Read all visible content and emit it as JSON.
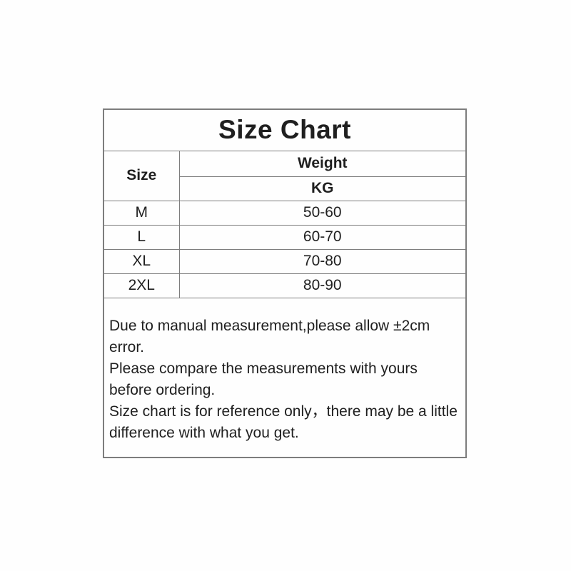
{
  "page": {
    "background_color": "#ffffff",
    "text_color": "#1f1f1f",
    "border_color": "#7d7d7d"
  },
  "table": {
    "title": "Size Chart",
    "headers": {
      "size": "Size",
      "weight": "Weight",
      "unit": "KG"
    },
    "rows": [
      {
        "size": "M",
        "weight_kg": "50-60"
      },
      {
        "size": "L",
        "weight_kg": "60-70"
      },
      {
        "size": "XL",
        "weight_kg": "70-80"
      },
      {
        "size": "2XL",
        "weight_kg": "80-90"
      }
    ],
    "notes": [
      "Due to manual measurement,please allow ±2cm error.",
      "Please compare the measurements with yours before ordering.",
      "Size chart is for reference only，there may be a little difference with what you get."
    ]
  },
  "chart_data": {
    "type": "table",
    "title": "Size Chart",
    "columns": [
      "Size",
      "Weight (KG)"
    ],
    "values": [
      [
        "M",
        "50-60"
      ],
      [
        "L",
        "60-70"
      ],
      [
        "XL",
        "70-80"
      ],
      [
        "2XL",
        "80-90"
      ]
    ]
  }
}
